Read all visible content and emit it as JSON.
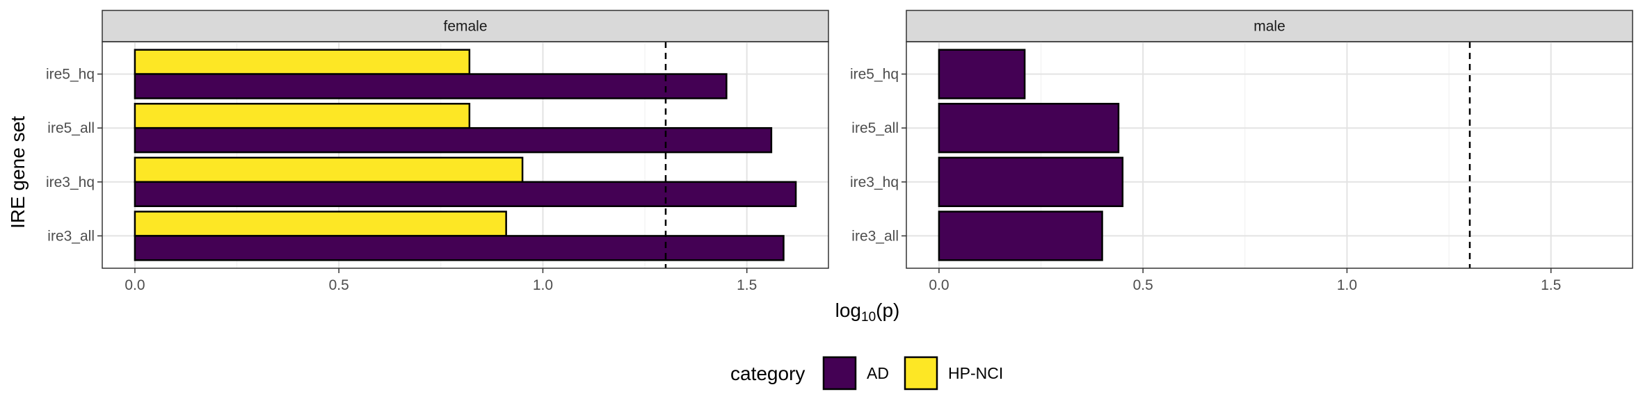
{
  "chart_data": {
    "type": "bar",
    "orientation": "horizontal",
    "facets": [
      "female",
      "male"
    ],
    "categories": [
      "ire5_hq",
      "ire5_all",
      "ire3_hq",
      "ire3_all"
    ],
    "ylabel": "IRE gene set",
    "xlabel": {
      "base": "log",
      "subscript": "10",
      "rest": "(p)"
    },
    "xlim": [
      -0.08,
      1.7
    ],
    "xticks": [
      0.0,
      0.5,
      1.0,
      1.5
    ],
    "xtick_labels": [
      "0.0",
      "0.5",
      "1.0",
      "1.5"
    ],
    "reference_line": 1.30103,
    "grid": true,
    "legend": {
      "title": "category",
      "position": "bottom",
      "entries": [
        {
          "name": "AD",
          "color": "#440154"
        },
        {
          "name": "HP-NCI",
          "color": "#FDE725"
        }
      ]
    },
    "panels": [
      {
        "facet": "female",
        "series": [
          {
            "name": "HP-NCI",
            "color": "#FDE725",
            "values": [
              0.82,
              0.82,
              0.95,
              0.91
            ]
          },
          {
            "name": "AD",
            "color": "#440154",
            "values": [
              1.45,
              1.56,
              1.62,
              1.59
            ]
          }
        ]
      },
      {
        "facet": "male",
        "series": [
          {
            "name": "AD",
            "color": "#440154",
            "values": [
              0.21,
              0.44,
              0.45,
              0.4
            ]
          }
        ]
      }
    ]
  }
}
